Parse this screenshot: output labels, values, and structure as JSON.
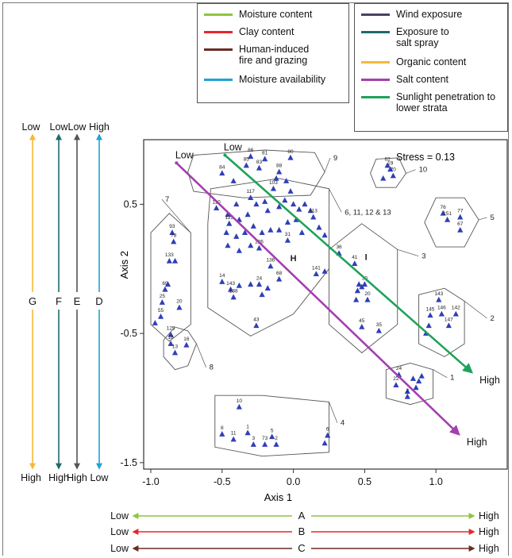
{
  "legend_left": [
    {
      "label": "Moisture content",
      "color": "#8cc63f"
    },
    {
      "label": "Clay content",
      "color": "#e8262a"
    },
    {
      "label": "Human-induced fire and grazing",
      "color": "#6b2c24"
    },
    {
      "label": "Moisture availability",
      "color": "#1fa3d6"
    }
  ],
  "legend_right": [
    {
      "label": "Wind exposure",
      "color": "#4b4160"
    },
    {
      "label": "Exposure to salt spray",
      "color": "#1d6b6b"
    },
    {
      "label": "Organic content",
      "color": "#f4b93a"
    },
    {
      "label": "Salt content",
      "color": "#a43fb0"
    },
    {
      "label": "Sunlight penetration to lower strata",
      "color": "#1fa25a"
    }
  ],
  "vertical_gradients": [
    {
      "letter": "G",
      "top": "Low",
      "bottom": "High",
      "color": "#f4b93a"
    },
    {
      "letter": "F",
      "top": "Low",
      "bottom": "High",
      "color": "#1d6b6b"
    },
    {
      "letter": "E",
      "top": "Low",
      "bottom": "High",
      "color": "#55535a"
    },
    {
      "letter": "D",
      "top": "High",
      "bottom": "Low",
      "color": "#1fa3d6"
    }
  ],
  "horizontal_gradients": [
    {
      "letter": "A",
      "left": "Low",
      "right": "High",
      "color": "#8cc63f"
    },
    {
      "letter": "B",
      "left": "Low",
      "right": "High",
      "color": "#e8262a"
    },
    {
      "letter": "C",
      "left": "Low",
      "right": "High",
      "color": "#6b2c24"
    }
  ],
  "chart_data": {
    "type": "scatter",
    "title": "",
    "xlabel": "Axis 1",
    "ylabel": "Axis 2",
    "xlim": [
      -1.05,
      1.5
    ],
    "ylim": [
      -1.55,
      1.0
    ],
    "x_ticks": [
      {
        "v": -1.0,
        "label": "-1.0"
      },
      {
        "v": -0.5,
        "label": "-0.5"
      },
      {
        "v": 0.0,
        "label": "0.0"
      },
      {
        "v": 0.5,
        "label": "0.5"
      },
      {
        "v": 1.0,
        "label": "1.0"
      }
    ],
    "y_ticks": [
      {
        "v": 0.5,
        "label": "0.5"
      },
      {
        "v": -0.5,
        "label": "-0.5"
      },
      {
        "v": -1.5,
        "label": "-1.5"
      }
    ],
    "annotation_stress": "Stress = 0.13",
    "vectors": [
      {
        "name": "Salt content",
        "color": "#a43fb0",
        "from": [
          -0.82,
          0.82
        ],
        "to": [
          1.16,
          -1.28
        ],
        "start_label": "Low",
        "end_label": "High"
      },
      {
        "name": "Sunlight penetration to lower strata",
        "color": "#1fa25a",
        "from": [
          -0.48,
          0.88
        ],
        "to": [
          1.25,
          -0.8
        ],
        "start_label": "Low",
        "end_label": "High"
      }
    ],
    "centroid_labels": [
      {
        "text": "H",
        "x": 0.0,
        "y": 0.06
      },
      {
        "text": "I",
        "x": 0.51,
        "y": 0.07
      }
    ],
    "groups": [
      {
        "label": "9",
        "hull": [
          [
            -0.7,
            0.88
          ],
          [
            -0.2,
            0.92
          ],
          [
            0.15,
            0.9
          ],
          [
            0.22,
            0.75
          ],
          [
            0.12,
            0.57
          ],
          [
            -0.35,
            0.55
          ],
          [
            -0.7,
            0.6
          ],
          [
            -0.74,
            0.75
          ]
        ],
        "label_at": [
          0.28,
          0.84
        ]
      },
      {
        "label": "10",
        "hull": [
          [
            0.58,
            0.85
          ],
          [
            0.74,
            0.86
          ],
          [
            0.79,
            0.74
          ],
          [
            0.72,
            0.63
          ],
          [
            0.58,
            0.63
          ],
          [
            0.54,
            0.74
          ]
        ],
        "label_at": [
          0.88,
          0.75
        ]
      },
      {
        "label": "5",
        "hull": [
          [
            1.0,
            0.55
          ],
          [
            1.2,
            0.55
          ],
          [
            1.3,
            0.38
          ],
          [
            1.2,
            0.17
          ],
          [
            1.0,
            0.17
          ],
          [
            0.92,
            0.36
          ]
        ],
        "label_at": [
          1.38,
          0.38
        ]
      },
      {
        "label": "6, 11, 12 & 13",
        "hull": [
          [
            -0.58,
            0.62
          ],
          [
            -0.1,
            0.7
          ],
          [
            0.25,
            0.62
          ],
          [
            0.25,
            0.0
          ],
          [
            0.0,
            -0.35
          ],
          [
            -0.3,
            -0.52
          ],
          [
            -0.6,
            -0.3
          ],
          [
            -0.6,
            0.35
          ]
        ],
        "label_at": [
          0.36,
          0.42
        ]
      },
      {
        "label": "7",
        "hull": [
          [
            -1.0,
            0.28
          ],
          [
            -0.87,
            0.43
          ],
          [
            -0.72,
            0.28
          ],
          [
            -0.72,
            -0.43
          ],
          [
            -0.87,
            -0.56
          ],
          [
            -1.0,
            -0.43
          ]
        ],
        "label_at": [
          -0.9,
          0.52
        ]
      },
      {
        "label": "3",
        "hull": [
          [
            0.25,
            0.15
          ],
          [
            0.48,
            0.35
          ],
          [
            0.73,
            0.15
          ],
          [
            0.73,
            -0.43
          ],
          [
            0.48,
            -0.65
          ],
          [
            0.25,
            -0.43
          ]
        ],
        "label_at": [
          0.9,
          0.08
        ]
      },
      {
        "label": "2",
        "hull": [
          [
            0.88,
            -0.2
          ],
          [
            1.06,
            -0.15
          ],
          [
            1.2,
            -0.25
          ],
          [
            1.2,
            -0.58
          ],
          [
            1.06,
            -0.68
          ],
          [
            0.88,
            -0.58
          ]
        ],
        "label_at": [
          1.38,
          -0.4
        ]
      },
      {
        "label": "8",
        "hull": [
          [
            -0.83,
            -0.45
          ],
          [
            -0.74,
            -0.48
          ],
          [
            -0.68,
            -0.58
          ],
          [
            -0.74,
            -0.75
          ],
          [
            -0.83,
            -0.78
          ],
          [
            -0.91,
            -0.68
          ],
          [
            -0.91,
            -0.55
          ]
        ],
        "label_at": [
          -0.59,
          -0.78
        ]
      },
      {
        "label": "1",
        "hull": [
          [
            0.65,
            -0.78
          ],
          [
            0.82,
            -0.73
          ],
          [
            0.98,
            -0.78
          ],
          [
            0.98,
            -1.0
          ],
          [
            0.82,
            -1.05
          ],
          [
            0.65,
            -1.0
          ]
        ],
        "label_at": [
          1.1,
          -0.86
        ]
      },
      {
        "label": "4",
        "hull": [
          [
            -0.55,
            -0.98
          ],
          [
            -0.22,
            -0.98
          ],
          [
            0.25,
            -1.03
          ],
          [
            0.25,
            -1.42
          ],
          [
            -0.22,
            -1.45
          ],
          [
            -0.55,
            -1.38
          ]
        ],
        "label_at": [
          0.33,
          -1.21
        ]
      }
    ],
    "points": [
      {
        "label": "84",
        "x": -0.5,
        "y": 0.74
      },
      {
        "label": "86",
        "x": -0.3,
        "y": 0.87
      },
      {
        "label": "81",
        "x": -0.2,
        "y": 0.85
      },
      {
        "label": "80",
        "x": -0.02,
        "y": 0.86
      },
      {
        "label": "85",
        "x": -0.33,
        "y": 0.8
      },
      {
        "label": "83",
        "x": -0.24,
        "y": 0.78
      },
      {
        "label": "88",
        "x": -0.1,
        "y": 0.75
      },
      {
        "label": "",
        "x": -0.42,
        "y": 0.68
      },
      {
        "label": "",
        "x": -0.12,
        "y": 0.7
      },
      {
        "label": "",
        "x": -0.05,
        "y": 0.68
      },
      {
        "label": "103",
        "x": -0.14,
        "y": 0.62
      },
      {
        "label": "",
        "x": -0.02,
        "y": 0.6
      },
      {
        "label": "62",
        "x": 0.66,
        "y": 0.8
      },
      {
        "label": "19",
        "x": 0.68,
        "y": 0.77
      },
      {
        "label": "70",
        "x": 0.7,
        "y": 0.72
      },
      {
        "label": "",
        "x": 0.63,
        "y": 0.7
      },
      {
        "label": "76",
        "x": 1.05,
        "y": 0.43
      },
      {
        "label": "151",
        "x": 1.08,
        "y": 0.38
      },
      {
        "label": "77",
        "x": 1.17,
        "y": 0.4
      },
      {
        "label": "67",
        "x": 1.17,
        "y": 0.3
      },
      {
        "label": "110",
        "x": -0.54,
        "y": 0.47
      },
      {
        "label": "117",
        "x": -0.3,
        "y": 0.55
      },
      {
        "label": "",
        "x": -0.4,
        "y": 0.5
      },
      {
        "label": "",
        "x": -0.46,
        "y": 0.42
      },
      {
        "label": "125",
        "x": -0.45,
        "y": 0.35
      },
      {
        "label": "",
        "x": -0.38,
        "y": 0.38
      },
      {
        "label": "",
        "x": -0.32,
        "y": 0.42
      },
      {
        "label": "",
        "x": -0.26,
        "y": 0.5
      },
      {
        "label": "",
        "x": -0.2,
        "y": 0.52
      },
      {
        "label": "",
        "x": -0.18,
        "y": 0.45
      },
      {
        "label": "",
        "x": -0.1,
        "y": 0.48
      },
      {
        "label": "",
        "x": -0.06,
        "y": 0.53
      },
      {
        "label": "",
        "x": 0.0,
        "y": 0.5
      },
      {
        "label": "",
        "x": 0.04,
        "y": 0.46
      },
      {
        "label": "",
        "x": 0.08,
        "y": 0.5
      },
      {
        "label": "",
        "x": 0.12,
        "y": 0.45
      },
      {
        "label": "113",
        "x": 0.14,
        "y": 0.4
      },
      {
        "label": "",
        "x": 0.18,
        "y": 0.32
      },
      {
        "label": "",
        "x": 0.22,
        "y": 0.26
      },
      {
        "label": "",
        "x": -0.47,
        "y": 0.28
      },
      {
        "label": "",
        "x": -0.4,
        "y": 0.25
      },
      {
        "label": "",
        "x": -0.34,
        "y": 0.28
      },
      {
        "label": "",
        "x": -0.28,
        "y": 0.33
      },
      {
        "label": "",
        "x": -0.22,
        "y": 0.28
      },
      {
        "label": "",
        "x": -0.16,
        "y": 0.3
      },
      {
        "label": "",
        "x": -0.1,
        "y": 0.3
      },
      {
        "label": "",
        "x": -0.04,
        "y": 0.36
      },
      {
        "label": "",
        "x": 0.02,
        "y": 0.38
      },
      {
        "label": "",
        "x": -0.46,
        "y": 0.18
      },
      {
        "label": "",
        "x": -0.38,
        "y": 0.14
      },
      {
        "label": "",
        "x": -0.3,
        "y": 0.18
      },
      {
        "label": "126",
        "x": -0.24,
        "y": 0.16
      },
      {
        "label": "31",
        "x": -0.04,
        "y": 0.22
      },
      {
        "label": "",
        "x": 0.06,
        "y": 0.28
      },
      {
        "label": "136",
        "x": -0.16,
        "y": 0.02
      },
      {
        "label": "141",
        "x": 0.16,
        "y": -0.04
      },
      {
        "label": "14",
        "x": -0.5,
        "y": -0.1
      },
      {
        "label": "143",
        "x": -0.44,
        "y": -0.16
      },
      {
        "label": "",
        "x": -0.38,
        "y": -0.13
      },
      {
        "label": "138",
        "x": -0.42,
        "y": -0.22
      },
      {
        "label": "24",
        "x": -0.24,
        "y": -0.12
      },
      {
        "label": "",
        "x": -0.18,
        "y": -0.15
      },
      {
        "label": "",
        "x": -0.22,
        "y": -0.2
      },
      {
        "label": "68",
        "x": -0.1,
        "y": -0.08
      },
      {
        "label": "",
        "x": -0.3,
        "y": -0.12
      },
      {
        "label": "43",
        "x": -0.26,
        "y": -0.44
      },
      {
        "label": "",
        "x": 0.22,
        "y": -0.02
      },
      {
        "label": "93",
        "x": -0.85,
        "y": 0.28
      },
      {
        "label": "78",
        "x": -0.84,
        "y": 0.21
      },
      {
        "label": "133",
        "x": -0.87,
        "y": 0.06
      },
      {
        "label": "",
        "x": -0.83,
        "y": 0.06
      },
      {
        "label": "69",
        "x": -0.9,
        "y": -0.16
      },
      {
        "label": "25",
        "x": -0.92,
        "y": -0.26
      },
      {
        "label": "20",
        "x": -0.8,
        "y": -0.3
      },
      {
        "label": "55",
        "x": -0.93,
        "y": -0.37
      },
      {
        "label": "",
        "x": -0.97,
        "y": -0.42
      },
      {
        "label": "",
        "x": -0.88,
        "y": -0.12
      },
      {
        "label": "125",
        "x": -0.86,
        "y": -0.51
      },
      {
        "label": "18",
        "x": -0.86,
        "y": -0.58
      },
      {
        "label": "13",
        "x": -0.83,
        "y": -0.65
      },
      {
        "label": "16",
        "x": -0.75,
        "y": -0.59
      },
      {
        "label": "36",
        "x": 0.32,
        "y": 0.12
      },
      {
        "label": "41",
        "x": 0.43,
        "y": 0.04
      },
      {
        "label": "",
        "x": 0.46,
        "y": -0.12
      },
      {
        "label": "",
        "x": 0.48,
        "y": -0.14
      },
      {
        "label": "30",
        "x": 0.5,
        "y": -0.12
      },
      {
        "label": "",
        "x": 0.45,
        "y": -0.17
      },
      {
        "label": "20",
        "x": 0.52,
        "y": -0.24
      },
      {
        "label": "",
        "x": 0.44,
        "y": -0.24
      },
      {
        "label": "45",
        "x": 0.48,
        "y": -0.45
      },
      {
        "label": "35",
        "x": 0.6,
        "y": -0.48
      },
      {
        "label": "143",
        "x": 1.02,
        "y": -0.24
      },
      {
        "label": "145",
        "x": 0.96,
        "y": -0.36
      },
      {
        "label": "146",
        "x": 1.04,
        "y": -0.35
      },
      {
        "label": "142",
        "x": 1.14,
        "y": -0.35
      },
      {
        "label": "147",
        "x": 1.09,
        "y": -0.44
      },
      {
        "label": "",
        "x": 0.95,
        "y": -0.44
      },
      {
        "label": "",
        "x": 0.93,
        "y": -0.5
      },
      {
        "label": "24",
        "x": 0.74,
        "y": -0.82
      },
      {
        "label": "",
        "x": 0.84,
        "y": -0.85
      },
      {
        "label": "",
        "x": 0.88,
        "y": -0.87
      },
      {
        "label": "",
        "x": 0.9,
        "y": -0.83
      },
      {
        "label": "22",
        "x": 0.72,
        "y": -0.9
      },
      {
        "label": "",
        "x": 0.8,
        "y": -0.95
      },
      {
        "label": "",
        "x": 0.86,
        "y": -0.92
      },
      {
        "label": "2",
        "x": 0.8,
        "y": -0.99
      },
      {
        "label": "10",
        "x": -0.38,
        "y": -1.07
      },
      {
        "label": "8",
        "x": -0.5,
        "y": -1.28
      },
      {
        "label": "11",
        "x": -0.42,
        "y": -1.32
      },
      {
        "label": "1",
        "x": -0.32,
        "y": -1.27
      },
      {
        "label": "3",
        "x": -0.28,
        "y": -1.36
      },
      {
        "label": "73",
        "x": -0.2,
        "y": -1.36
      },
      {
        "label": "2",
        "x": -0.12,
        "y": -1.36
      },
      {
        "label": "5",
        "x": -0.15,
        "y": -1.3
      },
      {
        "label": "6",
        "x": 0.24,
        "y": -1.29
      },
      {
        "label": "",
        "x": 0.22,
        "y": -1.35
      }
    ]
  }
}
